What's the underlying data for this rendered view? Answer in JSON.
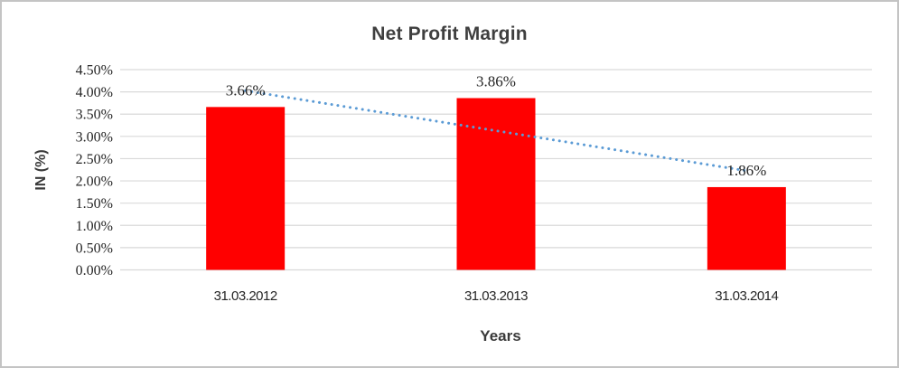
{
  "chart_data": {
    "type": "bar",
    "title": "Net Profit Margin",
    "xlabel": "Years",
    "ylabel": "IN (%)",
    "categories": [
      "31.03.2012",
      "31.03.2013",
      "31.03.2014"
    ],
    "values": [
      3.66,
      3.86,
      1.86
    ],
    "data_labels": [
      "3.66%",
      "3.86%",
      "1.86%"
    ],
    "y_ticks": [
      "4.50%",
      "4.00%",
      "3.50%",
      "3.00%",
      "2.50%",
      "2.00%",
      "1.50%",
      "1.00%",
      "0.50%",
      "0.00%"
    ],
    "ylim": [
      0,
      4.5
    ],
    "y_step": 0.5,
    "grid": true,
    "legend": "none",
    "bar_color": "#FF0000",
    "gridline_color": "#D9D9D9",
    "trendline": {
      "type": "linear",
      "style": "dotted",
      "color": "#5B9BD5"
    }
  }
}
